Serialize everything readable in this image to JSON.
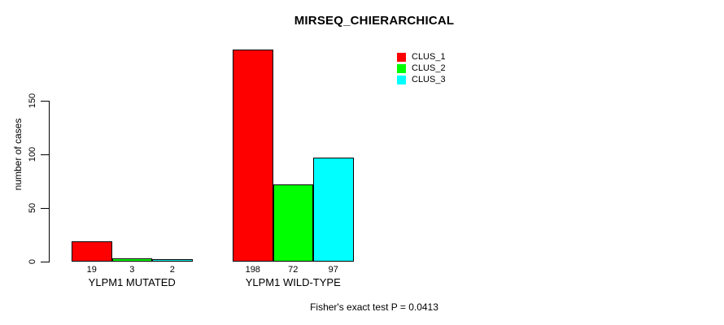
{
  "title": "MIRSEQ_CHIERARCHICAL",
  "footer": "Fisher's exact test P = 0.0413",
  "y_axis": {
    "label": "number of cases",
    "ticks": [
      "0",
      "50",
      "100",
      "150"
    ]
  },
  "legend": {
    "items": [
      {
        "label": "CLUS_1",
        "color": "#ff0000"
      },
      {
        "label": "CLUS_2",
        "color": "#00ff00"
      },
      {
        "label": "CLUS_3",
        "color": "#00ffff"
      }
    ]
  },
  "chart_data": {
    "type": "bar",
    "title": "MIRSEQ_CHIERARCHICAL",
    "categories": [
      "YLPM1 MUTATED",
      "YLPM1 WILD-TYPE"
    ],
    "series": [
      {
        "name": "CLUS_1",
        "color": "#ff0000",
        "values": [
          19,
          198
        ]
      },
      {
        "name": "CLUS_2",
        "color": "#00ff00",
        "values": [
          3,
          72
        ]
      },
      {
        "name": "CLUS_3",
        "color": "#00ffff",
        "values": [
          2,
          97
        ]
      }
    ],
    "bar_value_labels": [
      [
        "19",
        "3",
        "2"
      ],
      [
        "198",
        "72",
        "97"
      ]
    ],
    "xlabel": "",
    "ylabel": "number of cases",
    "ylim": [
      0,
      198
    ],
    "yticks": [
      0,
      50,
      100,
      150
    ],
    "grid": false,
    "legend_position": "top-right",
    "annotation": "Fisher's exact test P = 0.0413"
  }
}
